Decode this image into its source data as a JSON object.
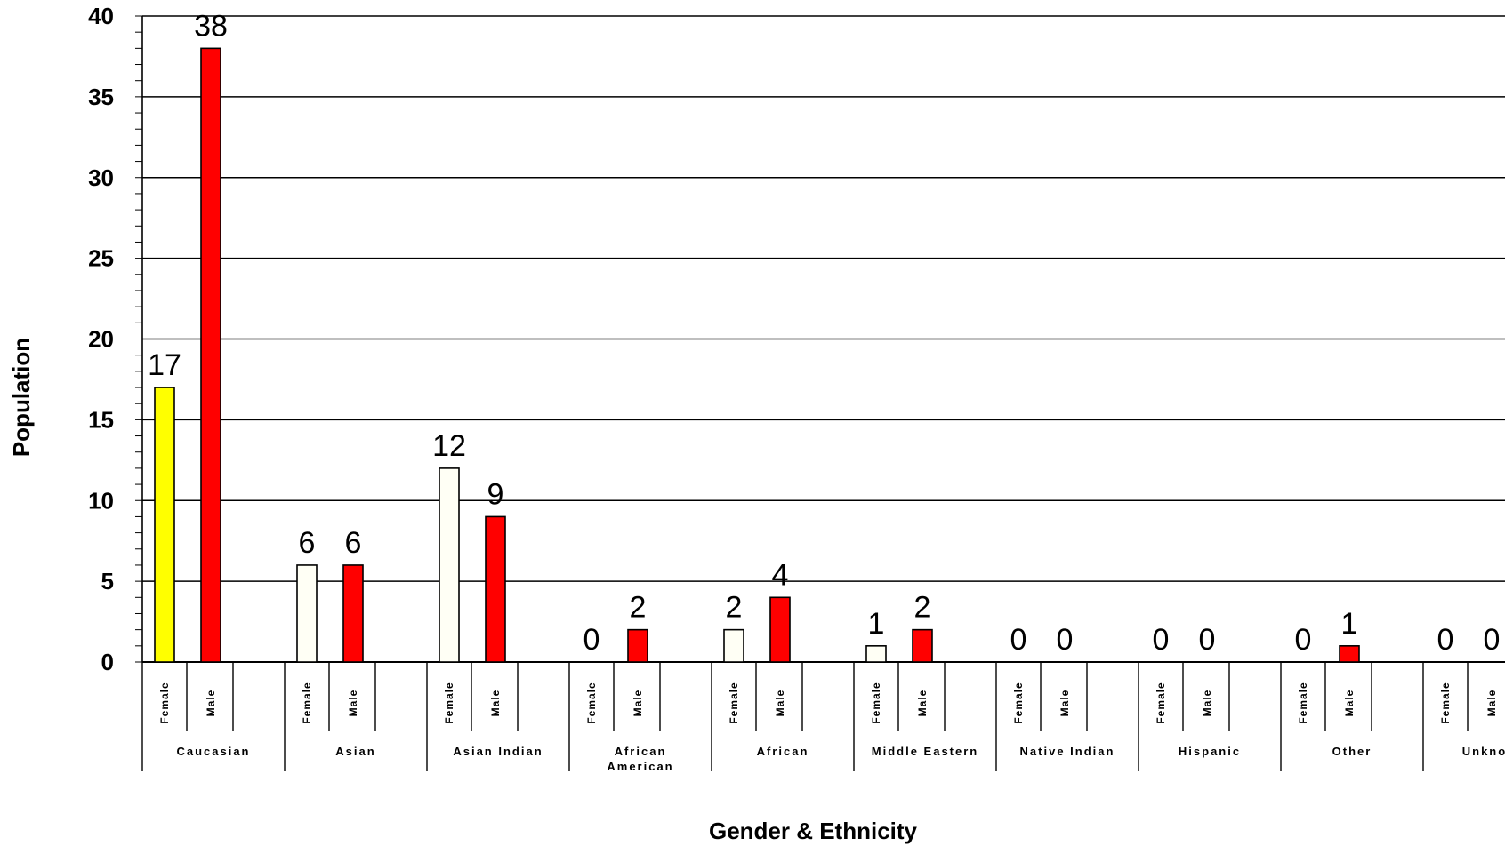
{
  "chart_data": {
    "type": "bar",
    "xlabel": "Gender & Ethnicity",
    "ylabel": "Population",
    "ylim": [
      0,
      40
    ],
    "yticks": [
      "0",
      "5",
      "10",
      "15",
      "20",
      "25",
      "30",
      "35",
      "40"
    ],
    "grid": true,
    "groups": [
      {
        "name": "Caucasian",
        "lines": [
          "Caucasian"
        ],
        "bars": [
          {
            "gender": "Female",
            "value": 17,
            "color": "#ffff00"
          },
          {
            "gender": "Male",
            "value": 38,
            "color": "#ff0000"
          }
        ]
      },
      {
        "name": "Asian",
        "lines": [
          "Asian"
        ],
        "bars": [
          {
            "gender": "Female",
            "value": 6,
            "color": "#fffff5"
          },
          {
            "gender": "Male",
            "value": 6,
            "color": "#ff0000"
          }
        ]
      },
      {
        "name": "Asian  Indian",
        "lines": [
          "Asian  Indian"
        ],
        "bars": [
          {
            "gender": "Female",
            "value": 12,
            "color": "#fffff5"
          },
          {
            "gender": "Male",
            "value": 9,
            "color": "#ff0000"
          }
        ]
      },
      {
        "name": "African American",
        "lines": [
          "African",
          "American"
        ],
        "bars": [
          {
            "gender": "Female",
            "value": 0,
            "color": "#fffff5"
          },
          {
            "gender": "Male",
            "value": 2,
            "color": "#ff0000"
          }
        ]
      },
      {
        "name": "African",
        "lines": [
          "African"
        ],
        "bars": [
          {
            "gender": "Female",
            "value": 2,
            "color": "#fffff5"
          },
          {
            "gender": "Male",
            "value": 4,
            "color": "#ff0000"
          }
        ]
      },
      {
        "name": "Middle  Eastern",
        "lines": [
          "Middle  Eastern"
        ],
        "bars": [
          {
            "gender": "Female",
            "value": 1,
            "color": "#fffff5"
          },
          {
            "gender": "Male",
            "value": 2,
            "color": "#ff0000"
          }
        ]
      },
      {
        "name": "Native  Indian",
        "lines": [
          "Native  Indian"
        ],
        "bars": [
          {
            "gender": "Female",
            "value": 0,
            "color": "#fffff5"
          },
          {
            "gender": "Male",
            "value": 0,
            "color": "#ff0000"
          }
        ]
      },
      {
        "name": "Hispanic",
        "lines": [
          "Hispanic"
        ],
        "bars": [
          {
            "gender": "Female",
            "value": 0,
            "color": "#fffff5"
          },
          {
            "gender": "Male",
            "value": 0,
            "color": "#ff0000"
          }
        ]
      },
      {
        "name": "Other",
        "lines": [
          "Other"
        ],
        "bars": [
          {
            "gender": "Female",
            "value": 0,
            "color": "#fffff5"
          },
          {
            "gender": "Male",
            "value": 1,
            "color": "#ff0000"
          }
        ]
      },
      {
        "name": "Unknown",
        "lines": [
          "Unknown"
        ],
        "bars": [
          {
            "gender": "Female",
            "value": 0,
            "color": "#fffff5"
          },
          {
            "gender": "Male",
            "value": 0,
            "color": "#ff0000"
          }
        ]
      }
    ]
  }
}
